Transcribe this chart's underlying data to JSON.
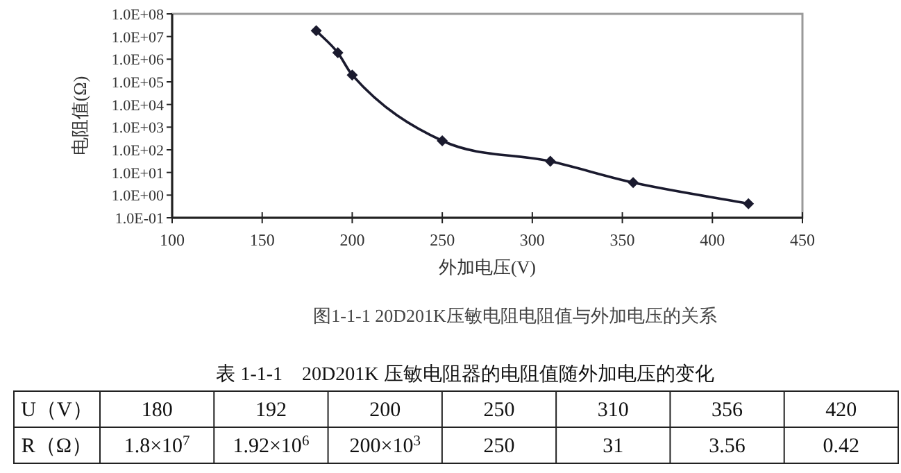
{
  "chart_data": [
    {
      "type": "line",
      "title": "图1-1-1 20D201K压敏电阻电阻值与外加电压的关系",
      "xlabel": "外加电压(V)",
      "ylabel": "电阻值(Ω)",
      "x": [
        180,
        192,
        200,
        250,
        310,
        356,
        420
      ],
      "series": [
        {
          "color": "#1a1a2e",
          "values": [
            18000000,
            1920000,
            200000,
            250,
            31,
            3.56,
            0.42
          ]
        }
      ],
      "log": "y",
      "marker": "diamond",
      "line_style": "solid",
      "xlim": [
        100,
        450
      ],
      "xticks": [
        100,
        150,
        200,
        250,
        300,
        350,
        400,
        450
      ],
      "ylim": [
        0.1,
        100000000
      ],
      "yticks": [
        {
          "value": 0.1,
          "label": "1.0E-01"
        },
        {
          "value": 1,
          "label": "1.0E+00"
        },
        {
          "value": 10,
          "label": "1.0E+01"
        },
        {
          "value": 100,
          "label": "1.0E+02"
        },
        {
          "value": 1000,
          "label": "1.0E+03"
        },
        {
          "value": 10000,
          "label": "1.0E+04"
        },
        {
          "value": 100000,
          "label": "1.0E+05"
        },
        {
          "value": 1000000,
          "label": "1.0E+06"
        },
        {
          "value": 10000000,
          "label": "1.0E+07"
        },
        {
          "value": 100000000,
          "label": "1.0E+08"
        }
      ]
    },
    {
      "type": "other",
      "title": "表 1-1-1　20D201K 压敏电阻器的电阻值随外加电压的变化",
      "annotations": [
        "U（V）",
        "180",
        "192",
        "200",
        "250",
        "310",
        "356",
        "420",
        "R（Ω）",
        "1.8×10$^{7}$",
        "1.92×10$^{6}$",
        "200×10$^{3}$",
        "250",
        "31",
        "3.56",
        "0.42"
      ]
    }
  ]
}
